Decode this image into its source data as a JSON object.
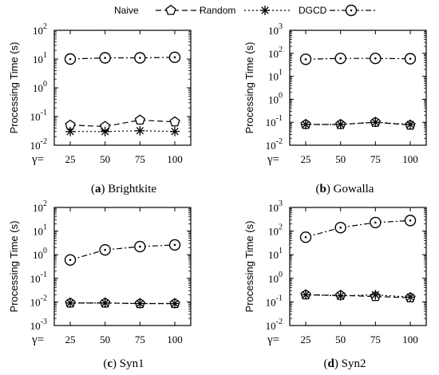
{
  "legend": {
    "items": [
      {
        "label": "Naive",
        "marker": "pentagon",
        "dash": "dashed"
      },
      {
        "label": "Random",
        "marker": "star",
        "dash": "dotted"
      },
      {
        "label": "DGCD",
        "marker": "circle-dot",
        "dash": "dashdot"
      }
    ]
  },
  "chart_data": [
    {
      "type": "line",
      "panel_letter": "a",
      "caption_text": "Brightkite",
      "ylabel": "Processing Time (s)",
      "x_prefix": "γ=",
      "x": [
        25,
        50,
        75,
        100
      ],
      "y_scale": "log",
      "ylim_exp": [
        -2,
        2
      ],
      "y_ticks": [
        {
          "base": "10",
          "exp": "-2"
        },
        {
          "base": "10",
          "exp": "-1"
        },
        {
          "base": "10",
          "exp": "0"
        },
        {
          "base": "10",
          "exp": "1"
        },
        {
          "base": "10",
          "exp": "2"
        }
      ],
      "series": [
        {
          "name": "Naive",
          "values": [
            0.05,
            0.045,
            0.075,
            0.065
          ]
        },
        {
          "name": "Random",
          "values": [
            0.03,
            0.03,
            0.032,
            0.03
          ]
        },
        {
          "name": "DGCD",
          "values": [
            10,
            11,
            11,
            11.5
          ]
        }
      ]
    },
    {
      "type": "line",
      "panel_letter": "b",
      "caption_text": "Gowalla",
      "ylabel": "Processing Time (s)",
      "x_prefix": "γ=",
      "x": [
        25,
        50,
        75,
        100
      ],
      "y_scale": "log",
      "ylim_exp": [
        -2,
        3
      ],
      "y_ticks": [
        {
          "base": "10",
          "exp": "-2"
        },
        {
          "base": "10",
          "exp": "-1"
        },
        {
          "base": "10",
          "exp": "0"
        },
        {
          "base": "10",
          "exp": "1"
        },
        {
          "base": "10",
          "exp": "2"
        },
        {
          "base": "10",
          "exp": "3"
        }
      ],
      "series": [
        {
          "name": "Naive",
          "values": [
            0.08,
            0.08,
            0.1,
            0.075
          ]
        },
        {
          "name": "Random",
          "values": [
            0.08,
            0.08,
            0.1,
            0.08
          ]
        },
        {
          "name": "DGCD",
          "values": [
            55,
            60,
            60,
            58
          ]
        }
      ]
    },
    {
      "type": "line",
      "panel_letter": "c",
      "caption_text": "Syn1",
      "ylabel": "Processing Time (s)",
      "x_prefix": "γ=",
      "x": [
        25,
        50,
        75,
        100
      ],
      "y_scale": "log",
      "ylim_exp": [
        -3,
        2
      ],
      "y_ticks": [
        {
          "base": "10",
          "exp": "-3"
        },
        {
          "base": "10",
          "exp": "-2"
        },
        {
          "base": "10",
          "exp": "-1"
        },
        {
          "base": "10",
          "exp": "0"
        },
        {
          "base": "10",
          "exp": "1"
        },
        {
          "base": "10",
          "exp": "2"
        }
      ],
      "series": [
        {
          "name": "Naive",
          "values": [
            0.009,
            0.009,
            0.0085,
            0.0085
          ]
        },
        {
          "name": "Random",
          "values": [
            0.009,
            0.009,
            0.0085,
            0.0085
          ]
        },
        {
          "name": "DGCD",
          "values": [
            0.6,
            1.6,
            2.2,
            2.6
          ]
        }
      ]
    },
    {
      "type": "line",
      "panel_letter": "d",
      "caption_text": "Syn2",
      "ylabel": "Processing Time (s)",
      "x_prefix": "γ=",
      "x": [
        25,
        50,
        75,
        100
      ],
      "y_scale": "log",
      "ylim_exp": [
        -2,
        3
      ],
      "y_ticks": [
        {
          "base": "10",
          "exp": "-2"
        },
        {
          "base": "10",
          "exp": "-1"
        },
        {
          "base": "10",
          "exp": "0"
        },
        {
          "base": "10",
          "exp": "1"
        },
        {
          "base": "10",
          "exp": "2"
        },
        {
          "base": "10",
          "exp": "3"
        }
      ],
      "series": [
        {
          "name": "Naive",
          "values": [
            0.2,
            0.19,
            0.17,
            0.15
          ]
        },
        {
          "name": "Random",
          "values": [
            0.2,
            0.18,
            0.2,
            0.16
          ]
        },
        {
          "name": "DGCD",
          "values": [
            55,
            140,
            230,
            280
          ]
        }
      ]
    }
  ]
}
